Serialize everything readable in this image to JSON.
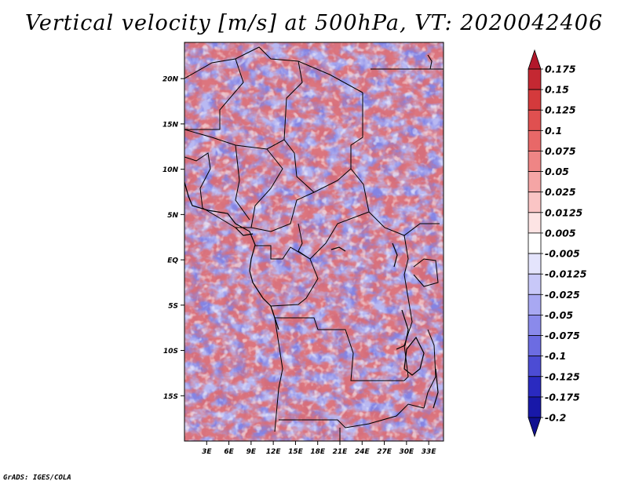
{
  "title": "Vertical velocity [m/s] at 500hPa, VT: 2020042406",
  "credit": "GrADS: IGES/COLA",
  "map": {
    "lon_range": [
      0,
      35
    ],
    "lat_range": [
      -20,
      24
    ],
    "lat_ticks": [
      {
        "label": "20N",
        "value": 20
      },
      {
        "label": "15N",
        "value": 15
      },
      {
        "label": "10N",
        "value": 10
      },
      {
        "label": "5N",
        "value": 5
      },
      {
        "label": "EQ",
        "value": 0
      },
      {
        "label": "5S",
        "value": -5
      },
      {
        "label": "10S",
        "value": -10
      },
      {
        "label": "15S",
        "value": -15
      }
    ],
    "lon_ticks": [
      {
        "label": "3E",
        "value": 3
      },
      {
        "label": "6E",
        "value": 6
      },
      {
        "label": "9E",
        "value": 9
      },
      {
        "label": "12E",
        "value": 12
      },
      {
        "label": "15E",
        "value": 15
      },
      {
        "label": "18E",
        "value": 18
      },
      {
        "label": "21E",
        "value": 21
      },
      {
        "label": "24E",
        "value": 24
      },
      {
        "label": "27E",
        "value": 27
      },
      {
        "label": "30E",
        "value": 30
      },
      {
        "label": "33E",
        "value": 33
      }
    ]
  },
  "colorbar": {
    "labels": [
      "0.175",
      "0.15",
      "0.125",
      "0.1",
      "0.075",
      "0.05",
      "0.025",
      "0.0125",
      "0.005",
      "-0.005",
      "-0.0125",
      "-0.025",
      "-0.05",
      "-0.075",
      "-0.1",
      "-0.125",
      "-0.175",
      "-0.2"
    ],
    "colors": [
      "#b2182b",
      "#c42832",
      "#d43a3c",
      "#e05050",
      "#e86868",
      "#ef8585",
      "#f5a5a5",
      "#fac5c5",
      "#fde4e4",
      "#ffffff",
      "#e4e4fc",
      "#c8c8f8",
      "#a8a8f2",
      "#8a8aeb",
      "#6c6ce2",
      "#4c4cd4",
      "#2a2ac0",
      "#1818a8",
      "#101090"
    ]
  }
}
